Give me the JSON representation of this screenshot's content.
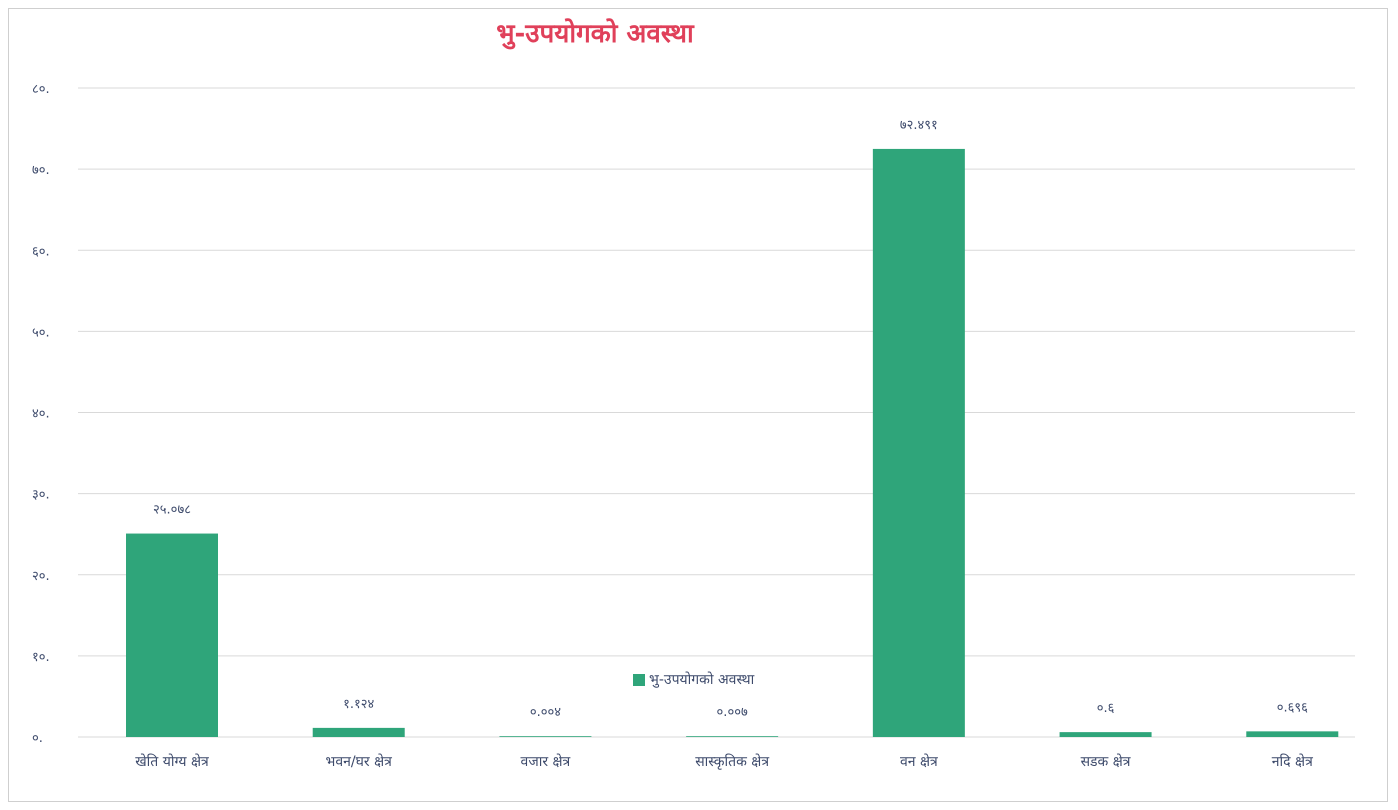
{
  "chart_data": {
    "type": "bar",
    "title": "भु-उपयोगको अवस्था",
    "categories": [
      "खेति योग्य क्षेत्र",
      "भवन/घर क्षेत्र",
      "वजार क्षेत्र",
      "सास्कृतिक क्षेत्र",
      "वन क्षेत्र",
      "सडक क्षेत्र",
      "नदि क्षेत्र"
    ],
    "series": [
      {
        "name": "भु-उपयोगको अवस्था",
        "values": [
          25.078,
          1.124,
          0.004,
          0.007,
          72.491,
          0.6,
          0.696
        ],
        "value_labels": [
          "२५.०७८",
          "१.१२४",
          "०.००४",
          "०.००७",
          "७२.४९१",
          "०.६",
          "०.६९६"
        ]
      }
    ],
    "ylim": [
      0,
      80
    ],
    "yticks": [
      0,
      10,
      20,
      30,
      40,
      50,
      60,
      70,
      80
    ],
    "ytick_labels": [
      "०.",
      "१०.",
      "२०.",
      "३०.",
      "४०.",
      "५०.",
      "६०.",
      "७०.",
      "८०."
    ],
    "xlabel": "",
    "ylabel": "",
    "grid": true,
    "legend_position": "bottom-center",
    "colors": {
      "bar": "#2fa57a",
      "grid": "#d9d9d9",
      "title": "#e0405a",
      "text": "#3d4a6b"
    }
  }
}
